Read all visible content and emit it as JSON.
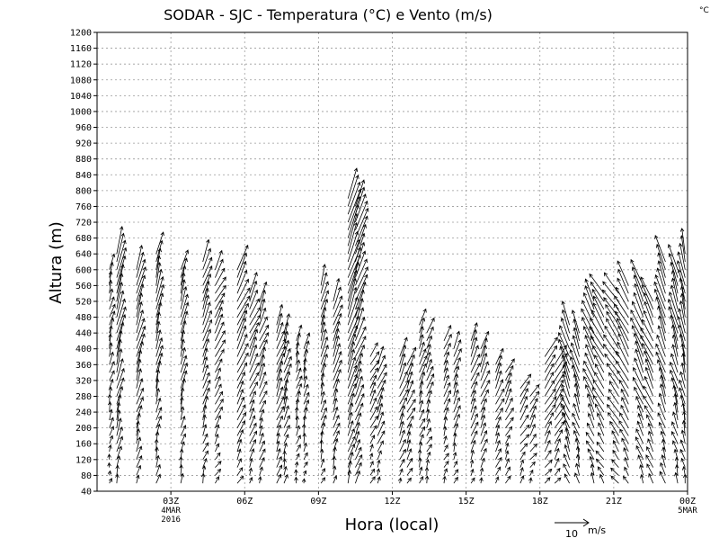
{
  "chart_data": {
    "type": "vector-profile",
    "title": "SODAR - SJC - Temperatura (°C) e Vento (m/s)",
    "unit_label": "°C",
    "xlabel": "Hora (local)",
    "ylabel": "Altura (m)",
    "ylim": [
      40,
      1200
    ],
    "ystep": 40,
    "xlim_hours": [
      0,
      24
    ],
    "x_ticks": [
      {
        "hour": 3,
        "label": "03Z",
        "date1": "4MAR",
        "date2": "2016"
      },
      {
        "hour": 6,
        "label": "06Z"
      },
      {
        "hour": 9,
        "label": "09Z"
      },
      {
        "hour": 12,
        "label": "12Z"
      },
      {
        "hour": 15,
        "label": "15Z"
      },
      {
        "hour": 18,
        "label": "18Z"
      },
      {
        "hour": 21,
        "label": "21Z"
      },
      {
        "hour": 24,
        "label": "00Z",
        "date1": "5MAR"
      }
    ],
    "reference_vector": {
      "value": "10",
      "units": "m/s"
    },
    "profiles": [
      {
        "hour": 0.5,
        "top": 600,
        "u": 1.0,
        "v": 4.0
      },
      {
        "hour": 0.8,
        "top": 640,
        "u": 2.0,
        "v": 8.0
      },
      {
        "hour": 1.6,
        "top": 600,
        "u": 2.0,
        "v": 7.0
      },
      {
        "hour": 2.4,
        "top": 640,
        "u": 1.5,
        "v": 6.5
      },
      {
        "hour": 3.4,
        "top": 600,
        "u": 1.5,
        "v": 6.0
      },
      {
        "hour": 4.3,
        "top": 620,
        "u": 2.0,
        "v": 6.0
      },
      {
        "hour": 4.8,
        "top": 600,
        "u": 2.5,
        "v": 5.0
      },
      {
        "hour": 5.7,
        "top": 600,
        "u": 3.0,
        "v": 6.5
      },
      {
        "hour": 6.2,
        "top": 540,
        "u": 2.5,
        "v": 5.5
      },
      {
        "hour": 6.6,
        "top": 520,
        "u": 2.0,
        "v": 5.0
      },
      {
        "hour": 7.3,
        "top": 460,
        "u": 2.0,
        "v": 5.5
      },
      {
        "hour": 7.6,
        "top": 440,
        "u": 1.5,
        "v": 5.0
      },
      {
        "hour": 8.1,
        "top": 420,
        "u": 1.0,
        "v": 4.0
      },
      {
        "hour": 8.4,
        "top": 400,
        "u": 1.0,
        "v": 4.0
      },
      {
        "hour": 9.1,
        "top": 560,
        "u": 1.5,
        "v": 5.5
      },
      {
        "hour": 9.6,
        "top": 520,
        "u": 2.0,
        "v": 6.0
      },
      {
        "hour": 10.2,
        "top": 780,
        "u": 3.0,
        "v": 9.0
      },
      {
        "hour": 10.5,
        "top": 760,
        "u": 3.0,
        "v": 8.0
      },
      {
        "hour": 11.1,
        "top": 380,
        "u": 2.0,
        "v": 4.0
      },
      {
        "hour": 11.4,
        "top": 360,
        "u": 2.0,
        "v": 5.0
      },
      {
        "hour": 12.3,
        "top": 380,
        "u": 2.0,
        "v": 5.0
      },
      {
        "hour": 12.6,
        "top": 360,
        "u": 2.0,
        "v": 4.5
      },
      {
        "hour": 13.1,
        "top": 460,
        "u": 1.5,
        "v": 4.5
      },
      {
        "hour": 13.4,
        "top": 440,
        "u": 1.5,
        "v": 4.0
      },
      {
        "hour": 14.1,
        "top": 420,
        "u": 1.5,
        "v": 4.0
      },
      {
        "hour": 14.5,
        "top": 400,
        "u": 1.5,
        "v": 4.5
      },
      {
        "hour": 15.2,
        "top": 420,
        "u": 2.0,
        "v": 5.0
      },
      {
        "hour": 15.6,
        "top": 400,
        "u": 2.0,
        "v": 5.0
      },
      {
        "hour": 16.2,
        "top": 360,
        "u": 2.0,
        "v": 4.5
      },
      {
        "hour": 16.6,
        "top": 340,
        "u": 2.0,
        "v": 4.0
      },
      {
        "hour": 17.2,
        "top": 300,
        "u": 2.5,
        "v": 4.0
      },
      {
        "hour": 17.6,
        "top": 280,
        "u": 2.0,
        "v": 3.5
      },
      {
        "hour": 18.2,
        "top": 380,
        "u": 3.0,
        "v": 5.0
      },
      {
        "hour": 18.6,
        "top": 360,
        "u": 3.0,
        "v": 5.0
      },
      {
        "hour": 19.2,
        "top": 460,
        "u": -2.5,
        "v": 7.0
      },
      {
        "hour": 19.6,
        "top": 440,
        "u": -2.0,
        "v": 6.5
      },
      {
        "hour": 20.2,
        "top": 520,
        "u": -3.0,
        "v": 6.5
      },
      {
        "hour": 20.6,
        "top": 540,
        "u": -3.5,
        "v": 6.0
      },
      {
        "hour": 21.2,
        "top": 540,
        "u": -4.0,
        "v": 6.0
      },
      {
        "hour": 21.6,
        "top": 560,
        "u": -3.5,
        "v": 6.5
      },
      {
        "hour": 22.2,
        "top": 560,
        "u": -3.0,
        "v": 7.0
      },
      {
        "hour": 22.6,
        "top": 520,
        "u": -3.0,
        "v": 6.5
      },
      {
        "hour": 23.1,
        "top": 620,
        "u": -2.5,
        "v": 7.5
      },
      {
        "hour": 23.6,
        "top": 600,
        "u": -2.0,
        "v": 7.0
      },
      {
        "hour": 23.9,
        "top": 640,
        "u": -1.5,
        "v": 7.0
      }
    ]
  }
}
